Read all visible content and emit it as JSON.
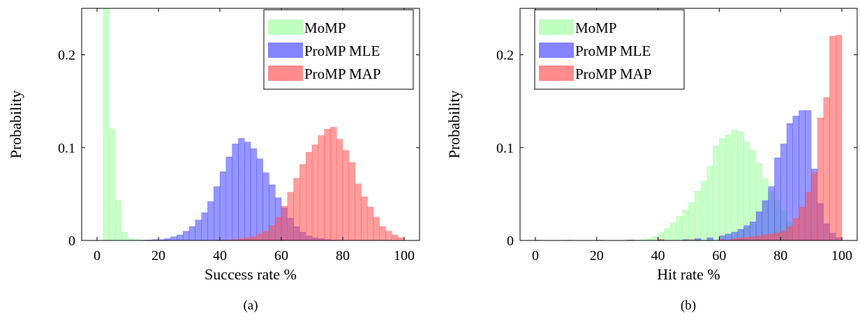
{
  "figure": {
    "captions": [
      "(a)",
      "(b)"
    ]
  },
  "colors": {
    "MoMP": "#9cff9c",
    "ProMP MLE": "#4040ff",
    "ProMP MAP": "#ff4d4d"
  },
  "chart_data": [
    {
      "type": "bar",
      "caption": "(a)",
      "xlabel": "Success rate %",
      "ylabel": "Probability",
      "xlim": [
        -5,
        105
      ],
      "ylim": [
        0,
        0.25
      ],
      "xticks": [
        0,
        20,
        40,
        60,
        80,
        100
      ],
      "yticks": [
        0,
        0.1,
        0.2
      ],
      "ytick_labels": [
        "0",
        "0.1",
        "0.2"
      ],
      "bin_width": 2,
      "grid": false,
      "legend": {
        "position": "top-right",
        "entries": [
          "MoMP",
          "ProMP MLE",
          "ProMP MAP"
        ]
      },
      "series": [
        {
          "name": "MoMP",
          "bin_starts": [
            2,
            4,
            6,
            8,
            10,
            12,
            14,
            16,
            18
          ],
          "values": [
            0.25,
            0.12,
            0.043,
            0.009,
            0.002,
            0.001,
            0.0005,
            0.0003,
            0.0002
          ]
        },
        {
          "name": "ProMP MLE",
          "bin_starts": [
            14,
            16,
            18,
            20,
            22,
            24,
            26,
            28,
            30,
            32,
            34,
            36,
            38,
            40,
            42,
            44,
            46,
            48,
            50,
            52,
            54,
            56,
            58,
            60,
            62,
            64,
            66,
            68,
            70,
            72,
            74,
            76,
            78
          ],
          "values": [
            0.0003,
            0.0005,
            0.001,
            0.001,
            0.002,
            0.004,
            0.006,
            0.01,
            0.015,
            0.022,
            0.03,
            0.042,
            0.058,
            0.074,
            0.09,
            0.104,
            0.11,
            0.106,
            0.099,
            0.088,
            0.073,
            0.06,
            0.046,
            0.035,
            0.024,
            0.015,
            0.009,
            0.005,
            0.003,
            0.002,
            0.001,
            0.0005,
            0.0003
          ]
        },
        {
          "name": "ProMP MAP",
          "bin_starts": [
            40,
            42,
            44,
            46,
            48,
            50,
            52,
            54,
            56,
            58,
            60,
            62,
            64,
            66,
            68,
            70,
            72,
            74,
            76,
            78,
            80,
            82,
            84,
            86,
            88,
            90,
            92,
            94,
            96,
            98
          ],
          "values": [
            0.0003,
            0.0005,
            0.001,
            0.002,
            0.003,
            0.004,
            0.007,
            0.01,
            0.016,
            0.025,
            0.037,
            0.052,
            0.067,
            0.082,
            0.095,
            0.103,
            0.113,
            0.12,
            0.122,
            0.109,
            0.097,
            0.084,
            0.061,
            0.047,
            0.036,
            0.025,
            0.015,
            0.01,
            0.006,
            0.003
          ]
        }
      ]
    },
    {
      "type": "bar",
      "caption": "(b)",
      "xlabel": "Hit rate %",
      "ylabel": "Probability",
      "xlim": [
        -5,
        105
      ],
      "ylim": [
        0,
        0.25
      ],
      "xticks": [
        0,
        20,
        40,
        60,
        80,
        100
      ],
      "yticks": [
        0,
        0.1,
        0.2
      ],
      "ytick_labels": [
        "0",
        "0.1",
        "0.2"
      ],
      "bin_width": 2,
      "grid": false,
      "legend": {
        "position": "top-left",
        "entries": [
          "MoMP",
          "ProMP MLE",
          "ProMP MAP"
        ]
      },
      "series": [
        {
          "name": "MoMP",
          "bin_starts": [
            30,
            32,
            34,
            36,
            38,
            40,
            42,
            44,
            46,
            48,
            50,
            52,
            54,
            56,
            58,
            60,
            62,
            64,
            66,
            68,
            70,
            72,
            74,
            76,
            78,
            80,
            82
          ],
          "values": [
            0.0003,
            0.0005,
            0.001,
            0.002,
            0.004,
            0.008,
            0.013,
            0.019,
            0.026,
            0.033,
            0.041,
            0.053,
            0.064,
            0.08,
            0.102,
            0.11,
            0.114,
            0.119,
            0.117,
            0.106,
            0.097,
            0.083,
            0.067,
            0.052,
            0.043,
            0.032,
            0.02
          ]
        },
        {
          "name": "ProMP MLE",
          "bin_starts": [
            0,
            10,
            20,
            30,
            40,
            48,
            52,
            56,
            60,
            62,
            64,
            66,
            68,
            70,
            72,
            74,
            76,
            78,
            80,
            82,
            84,
            86,
            88,
            90,
            92,
            94,
            96,
            98
          ],
          "values": [
            0.0003,
            0.0003,
            0.0003,
            0.0005,
            0.001,
            0.001,
            0.002,
            0.003,
            0.005,
            0.007,
            0.009,
            0.012,
            0.016,
            0.02,
            0.031,
            0.043,
            0.058,
            0.089,
            0.104,
            0.126,
            0.134,
            0.14,
            0.14,
            0.077,
            0.04,
            0.018,
            0.008,
            0.003
          ]
        },
        {
          "name": "ProMP MAP",
          "bin_starts": [
            0,
            10,
            20,
            30,
            40,
            50,
            60,
            64,
            66,
            68,
            70,
            72,
            74,
            76,
            78,
            80,
            82,
            84,
            86,
            88,
            90,
            92,
            94,
            96,
            98
          ],
          "values": [
            0.0003,
            0.0003,
            0.0003,
            0.0005,
            0.001,
            0.001,
            0.001,
            0.002,
            0.003,
            0.003,
            0.004,
            0.005,
            0.006,
            0.007,
            0.008,
            0.01,
            0.015,
            0.024,
            0.036,
            0.052,
            0.073,
            0.132,
            0.154,
            0.22,
            0.221
          ]
        }
      ]
    }
  ]
}
